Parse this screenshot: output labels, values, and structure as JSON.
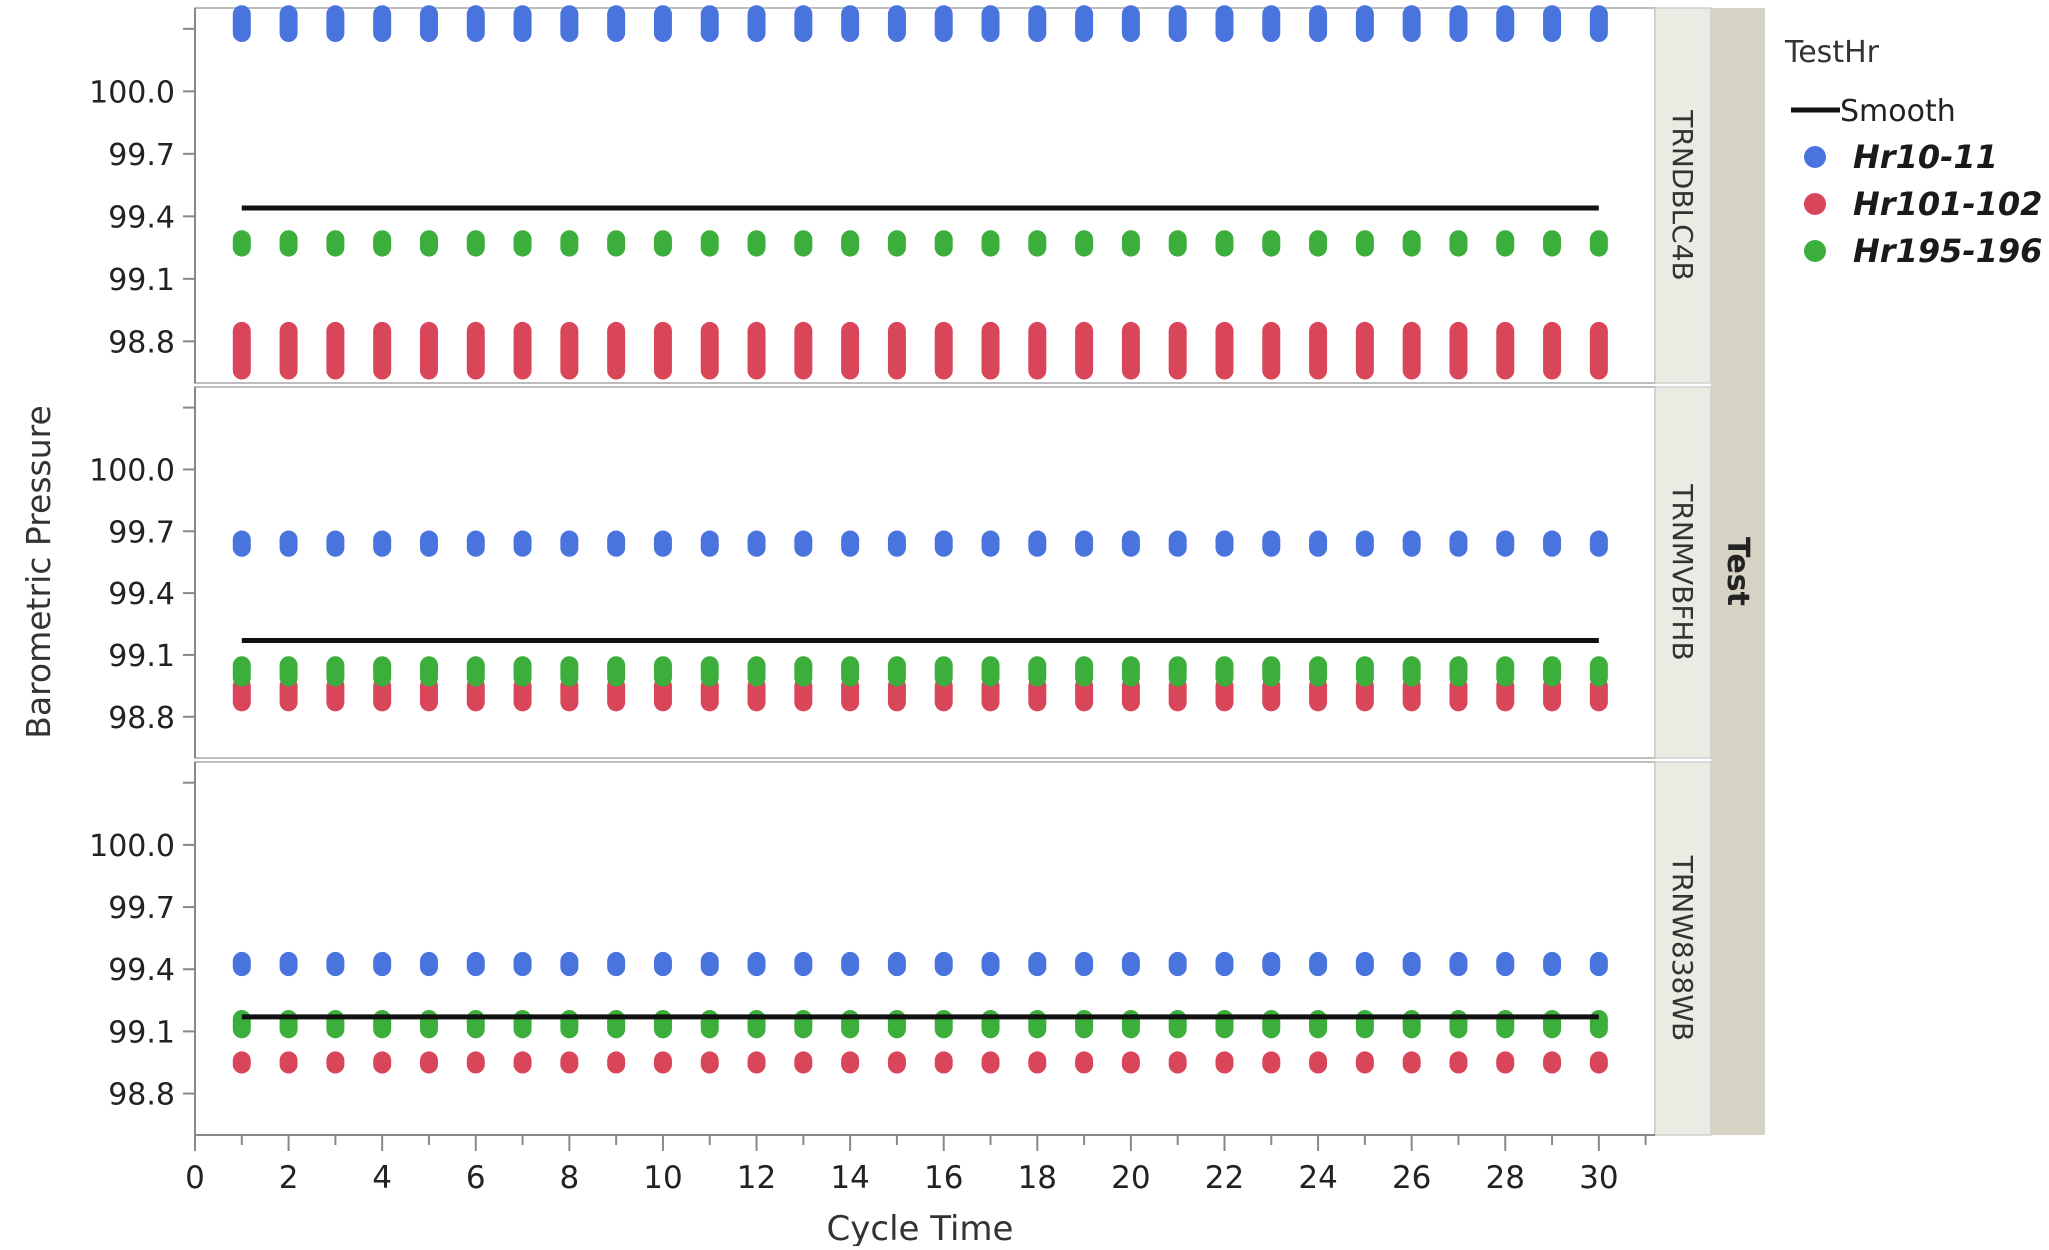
{
  "chart_data": {
    "type": "scatter",
    "xlabel": "Cycle Time",
    "ylabel": "Barometric Pressure",
    "xlim": [
      0,
      31.2
    ],
    "xticks": [
      0,
      2,
      4,
      6,
      8,
      10,
      12,
      14,
      16,
      18,
      20,
      22,
      24,
      26,
      28,
      30
    ],
    "ylim": [
      98.6,
      100.4
    ],
    "yticks": [
      98.8,
      99.1,
      99.4,
      99.7,
      100.0
    ],
    "x": [
      1,
      2,
      3,
      4,
      5,
      6,
      7,
      8,
      9,
      10,
      11,
      12,
      13,
      14,
      15,
      16,
      17,
      18,
      19,
      20,
      21,
      22,
      23,
      24,
      25,
      26,
      27,
      28,
      29,
      30
    ],
    "group_title": "Test",
    "legend": {
      "title": "TestHr",
      "smooth_label": "Smooth",
      "entries": [
        {
          "label": "Hr10-11",
          "color": "#4a74dd"
        },
        {
          "label": "Hr101-102",
          "color": "#d9465a"
        },
        {
          "label": "Hr195-196",
          "color": "#3cae3c"
        }
      ]
    },
    "panels": [
      {
        "name": "TRNDBLC4B",
        "smooth": 99.44,
        "series": [
          {
            "name": "Hr10-11",
            "color": "#4a74dd",
            "y": [
              100.28,
              100.37
            ]
          },
          {
            "name": "Hr101-102",
            "color": "#d9465a",
            "y": [
              98.66,
              98.85
            ]
          },
          {
            "name": "Hr195-196",
            "color": "#3cae3c",
            "y": [
              99.25,
              99.29
            ]
          }
        ]
      },
      {
        "name": "TRNMVBFHB",
        "smooth": 99.17,
        "series": [
          {
            "name": "Hr10-11",
            "color": "#4a74dd",
            "y": [
              99.62,
              99.66
            ]
          },
          {
            "name": "Hr101-102",
            "color": "#d9465a",
            "y": [
              98.87,
              98.95
            ]
          },
          {
            "name": "Hr195-196",
            "color": "#3cae3c",
            "y": [
              98.99,
              99.05
            ]
          }
        ]
      },
      {
        "name": "TRNW838WB",
        "smooth": 99.17,
        "series": [
          {
            "name": "Hr10-11",
            "color": "#4a74dd",
            "y": [
              99.41,
              99.44
            ]
          },
          {
            "name": "Hr101-102",
            "color": "#d9465a",
            "y": [
              98.94,
              98.96
            ]
          },
          {
            "name": "Hr195-196",
            "color": "#3cae3c",
            "y": [
              99.11,
              99.16
            ]
          }
        ]
      }
    ]
  }
}
